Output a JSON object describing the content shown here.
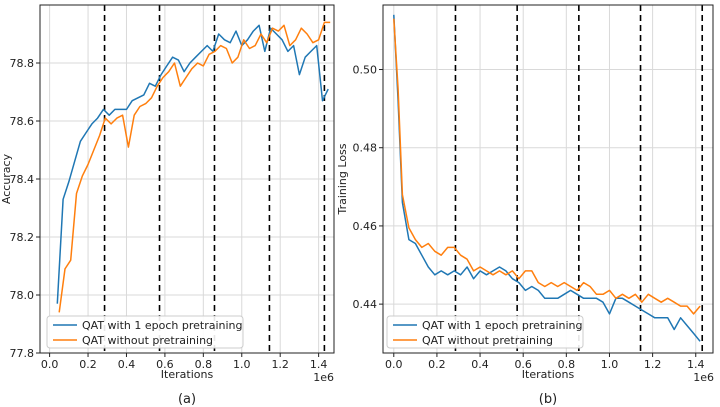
{
  "colors": {
    "blue": "#1f77b4",
    "orange": "#ff7f0e",
    "grid": "#d9d9d9",
    "vline": "#000000"
  },
  "chart_data": [
    {
      "type": "line",
      "caption": "(a)",
      "xlabel": "Iterations",
      "ylabel": "Accuracy",
      "x_offset_label": "1e6",
      "xlim": [
        -0.05,
        1.48
      ],
      "ylim": [
        77.8,
        79.0
      ],
      "xticks": [
        0.0,
        0.2,
        0.4,
        0.6,
        0.8,
        1.0,
        1.2,
        1.4
      ],
      "xtick_labels": [
        "0.0",
        "0.2",
        "0.4",
        "0.6",
        "0.8",
        "1.0",
        "1.2",
        "1.4"
      ],
      "yticks": [
        77.8,
        78.0,
        78.2,
        78.4,
        78.6,
        78.8
      ],
      "ytick_labels": [
        "77.8",
        "78.0",
        "78.2",
        "78.4",
        "78.6",
        "78.8"
      ],
      "grid": true,
      "vlines": [
        0.286,
        0.572,
        0.858,
        1.144,
        1.43
      ],
      "legend_position": "lower-left",
      "series": [
        {
          "name": "QAT with 1 epoch pretraining",
          "color": "#1f77b4",
          "x": [
            0.04,
            0.07,
            0.1,
            0.13,
            0.16,
            0.19,
            0.22,
            0.25,
            0.28,
            0.31,
            0.34,
            0.37,
            0.4,
            0.43,
            0.46,
            0.49,
            0.52,
            0.55,
            0.58,
            0.61,
            0.64,
            0.67,
            0.7,
            0.73,
            0.76,
            0.79,
            0.82,
            0.85,
            0.88,
            0.91,
            0.94,
            0.97,
            1.0,
            1.03,
            1.06,
            1.09,
            1.12,
            1.15,
            1.18,
            1.21,
            1.24,
            1.27,
            1.3,
            1.33,
            1.36,
            1.39,
            1.42,
            1.45
          ],
          "y": [
            77.97,
            78.33,
            78.39,
            78.46,
            78.53,
            78.56,
            78.59,
            78.61,
            78.64,
            78.62,
            78.64,
            78.64,
            78.64,
            78.67,
            78.68,
            78.69,
            78.73,
            78.72,
            78.76,
            78.79,
            78.82,
            78.81,
            78.77,
            78.8,
            78.82,
            78.84,
            78.86,
            78.84,
            78.9,
            78.88,
            78.87,
            78.91,
            78.86,
            78.88,
            78.91,
            78.93,
            78.84,
            78.92,
            78.9,
            78.88,
            78.84,
            78.86,
            78.76,
            78.82,
            78.84,
            78.86,
            78.67,
            78.71
          ]
        },
        {
          "name": "QAT without pretraining",
          "color": "#ff7f0e",
          "x": [
            0.05,
            0.08,
            0.11,
            0.14,
            0.17,
            0.2,
            0.23,
            0.26,
            0.29,
            0.32,
            0.35,
            0.38,
            0.41,
            0.44,
            0.47,
            0.5,
            0.53,
            0.56,
            0.59,
            0.62,
            0.65,
            0.68,
            0.71,
            0.74,
            0.77,
            0.8,
            0.83,
            0.86,
            0.89,
            0.92,
            0.95,
            0.98,
            1.01,
            1.04,
            1.07,
            1.1,
            1.13,
            1.16,
            1.19,
            1.22,
            1.25,
            1.28,
            1.31,
            1.34,
            1.37,
            1.4,
            1.43,
            1.46
          ],
          "y": [
            77.94,
            78.09,
            78.12,
            78.35,
            78.41,
            78.45,
            78.5,
            78.55,
            78.61,
            78.59,
            78.61,
            78.62,
            78.51,
            78.62,
            78.65,
            78.66,
            78.68,
            78.72,
            78.75,
            78.77,
            78.8,
            78.72,
            78.75,
            78.78,
            78.8,
            78.79,
            78.83,
            78.84,
            78.86,
            78.85,
            78.8,
            78.82,
            78.88,
            78.85,
            78.86,
            78.9,
            78.87,
            78.92,
            78.91,
            78.93,
            78.86,
            78.88,
            78.92,
            78.9,
            78.87,
            78.88,
            78.94,
            78.94
          ]
        }
      ]
    },
    {
      "type": "line",
      "caption": "(b)",
      "xlabel": "Iterations",
      "ylabel": "Training Loss",
      "x_offset_label": "1e6",
      "xlim": [
        -0.05,
        1.48
      ],
      "ylim": [
        0.4275,
        0.5165
      ],
      "xticks": [
        0.0,
        0.2,
        0.4,
        0.6,
        0.8,
        1.0,
        1.2,
        1.4
      ],
      "xtick_labels": [
        "0.0",
        "0.2",
        "0.4",
        "0.6",
        "0.8",
        "1.0",
        "1.2",
        "1.4"
      ],
      "yticks": [
        0.44,
        0.46,
        0.48,
        0.5
      ],
      "ytick_labels": [
        "0.44",
        "0.46",
        "0.48",
        "0.50"
      ],
      "grid": true,
      "vlines": [
        0.286,
        0.572,
        0.858,
        1.144,
        1.43
      ],
      "legend_position": "lower-left",
      "series": [
        {
          "name": "QAT with 1 epoch pretraining",
          "color": "#1f77b4",
          "x": [
            0.0,
            0.02,
            0.04,
            0.07,
            0.1,
            0.13,
            0.16,
            0.19,
            0.22,
            0.25,
            0.28,
            0.31,
            0.34,
            0.37,
            0.4,
            0.43,
            0.46,
            0.49,
            0.52,
            0.55,
            0.58,
            0.61,
            0.64,
            0.67,
            0.7,
            0.73,
            0.76,
            0.79,
            0.82,
            0.85,
            0.88,
            0.91,
            0.94,
            0.97,
            1.0,
            1.03,
            1.06,
            1.09,
            1.12,
            1.15,
            1.18,
            1.21,
            1.24,
            1.27,
            1.3,
            1.33,
            1.36,
            1.39,
            1.42
          ],
          "y": [
            0.514,
            0.492,
            0.466,
            0.4565,
            0.4555,
            0.4525,
            0.4495,
            0.4475,
            0.4485,
            0.4475,
            0.4485,
            0.4475,
            0.4495,
            0.4465,
            0.4485,
            0.4475,
            0.4485,
            0.4495,
            0.4485,
            0.4465,
            0.4455,
            0.4435,
            0.4445,
            0.4435,
            0.4415,
            0.4415,
            0.4415,
            0.4425,
            0.4435,
            0.4425,
            0.4415,
            0.4415,
            0.4415,
            0.4405,
            0.4375,
            0.4415,
            0.4415,
            0.4405,
            0.4395,
            0.4385,
            0.4375,
            0.4365,
            0.4365,
            0.4365,
            0.4335,
            0.4365,
            0.4345,
            0.4325,
            0.4305
          ]
        },
        {
          "name": "QAT without pretraining",
          "color": "#ff7f0e",
          "x": [
            0.0,
            0.02,
            0.04,
            0.07,
            0.1,
            0.13,
            0.16,
            0.19,
            0.22,
            0.25,
            0.28,
            0.31,
            0.34,
            0.37,
            0.4,
            0.43,
            0.46,
            0.49,
            0.52,
            0.55,
            0.58,
            0.61,
            0.64,
            0.67,
            0.7,
            0.73,
            0.76,
            0.79,
            0.82,
            0.85,
            0.88,
            0.91,
            0.94,
            0.97,
            1.0,
            1.03,
            1.06,
            1.09,
            1.12,
            1.15,
            1.18,
            1.21,
            1.24,
            1.27,
            1.3,
            1.33,
            1.36,
            1.39,
            1.42
          ],
          "y": [
            0.513,
            0.495,
            0.468,
            0.4595,
            0.4565,
            0.4545,
            0.4555,
            0.4535,
            0.4525,
            0.4545,
            0.4545,
            0.4525,
            0.4515,
            0.4485,
            0.4495,
            0.4485,
            0.4475,
            0.4485,
            0.4475,
            0.4485,
            0.4465,
            0.4485,
            0.4485,
            0.4455,
            0.4445,
            0.4455,
            0.4445,
            0.4455,
            0.4445,
            0.4435,
            0.4455,
            0.4445,
            0.4425,
            0.4425,
            0.4435,
            0.4415,
            0.4425,
            0.4415,
            0.4425,
            0.4405,
            0.4425,
            0.4415,
            0.4405,
            0.4415,
            0.4405,
            0.4395,
            0.4395,
            0.4375,
            0.4395
          ]
        }
      ]
    }
  ]
}
